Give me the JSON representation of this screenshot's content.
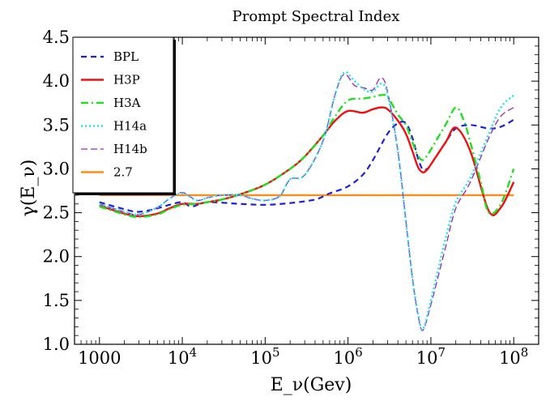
{
  "chart_data": {
    "type": "line",
    "title": "Prompt Spectral Index",
    "xlabel": "E_ν(Gev)",
    "ylabel": "γ(E_ν)",
    "x_scale": "log",
    "xlim": [
      500,
      200000000
    ],
    "ylim": [
      1.0,
      4.5
    ],
    "x_ticks": [
      {
        "value": 1000,
        "base": "1000",
        "exp": ""
      },
      {
        "value": 10000,
        "base": "10",
        "exp": "4"
      },
      {
        "value": 100000,
        "base": "10",
        "exp": "5"
      },
      {
        "value": 1000000,
        "base": "10",
        "exp": "6"
      },
      {
        "value": 10000000,
        "base": "10",
        "exp": "7"
      },
      {
        "value": 100000000,
        "base": "10",
        "exp": "8"
      }
    ],
    "y_ticks": [
      {
        "value": 1.0,
        "label": "1.0"
      },
      {
        "value": 1.5,
        "label": "1.5"
      },
      {
        "value": 2.0,
        "label": "2.0"
      },
      {
        "value": 2.5,
        "label": "2.5"
      },
      {
        "value": 3.0,
        "label": "3.0"
      },
      {
        "value": 3.5,
        "label": "3.5"
      },
      {
        "value": 4.0,
        "label": "4.0"
      },
      {
        "value": 4.5,
        "label": "4.5"
      }
    ],
    "grid": false,
    "legend_position": "top-left",
    "series": [
      {
        "name": "BPL",
        "color": "#1f1fd6",
        "dash": "7,5",
        "width": 2.2,
        "x": [
          1000,
          2000,
          3000,
          5000,
          7000,
          10000,
          13000,
          20000,
          50000,
          100000,
          200000,
          400000,
          600000,
          1000000,
          1500000,
          2000000,
          3000000,
          4000000,
          5000000,
          6000000,
          7000000,
          8000000,
          9000000,
          10000000,
          15000000,
          20000000,
          30000000,
          50000000,
          70000000,
          100000000
        ],
        "y": [
          2.62,
          2.54,
          2.51,
          2.55,
          2.59,
          2.62,
          2.57,
          2.62,
          2.6,
          2.59,
          2.61,
          2.65,
          2.72,
          2.8,
          2.93,
          3.1,
          3.4,
          3.52,
          3.52,
          3.35,
          3.12,
          2.99,
          3.0,
          3.05,
          3.3,
          3.46,
          3.5,
          3.46,
          3.48,
          3.56
        ]
      },
      {
        "name": "H3P",
        "color": "#ee1111",
        "dash": "",
        "width": 2.4,
        "x": [
          1000,
          2000,
          3000,
          5000,
          7000,
          10000,
          15000,
          20000,
          30000,
          50000,
          100000,
          200000,
          300000,
          500000,
          700000,
          1000000,
          1500000,
          2000000,
          2500000,
          3000000,
          4000000,
          5000000,
          6000000,
          7000000,
          8000000,
          9000000,
          10000000,
          15000000,
          20000000,
          30000000,
          50000000,
          70000000,
          100000000
        ],
        "y": [
          2.58,
          2.49,
          2.46,
          2.49,
          2.55,
          2.6,
          2.6,
          2.62,
          2.65,
          2.71,
          2.82,
          3.0,
          3.14,
          3.38,
          3.55,
          3.66,
          3.64,
          3.68,
          3.7,
          3.68,
          3.55,
          3.4,
          3.2,
          3.02,
          2.96,
          2.99,
          3.05,
          3.3,
          3.47,
          3.2,
          2.52,
          2.56,
          2.85
        ]
      },
      {
        "name": "H3A",
        "color": "#22dd22",
        "dash": "9,4,2,4",
        "width": 2.4,
        "x": [
          1000,
          2000,
          3000,
          5000,
          7000,
          10000,
          15000,
          20000,
          30000,
          50000,
          100000,
          200000,
          300000,
          500000,
          700000,
          1000000,
          1500000,
          2000000,
          2500000,
          3000000,
          4000000,
          5000000,
          6000000,
          7000000,
          8000000,
          9000000,
          10000000,
          15000000,
          20000000,
          25000000,
          30000000,
          40000000,
          50000000,
          70000000,
          100000000
        ],
        "y": [
          2.57,
          2.48,
          2.45,
          2.48,
          2.54,
          2.59,
          2.6,
          2.62,
          2.65,
          2.71,
          2.82,
          3.0,
          3.14,
          3.38,
          3.6,
          3.78,
          3.8,
          3.82,
          3.84,
          3.82,
          3.62,
          3.5,
          3.3,
          3.15,
          3.1,
          3.15,
          3.22,
          3.5,
          3.7,
          3.55,
          3.3,
          2.85,
          2.5,
          2.6,
          3.0
        ]
      },
      {
        "name": "H14a",
        "color": "#22e5ee",
        "dash": "2,3",
        "width": 2.6,
        "x": [
          1000,
          2000,
          3000,
          5000,
          7000,
          10000,
          15000,
          20000,
          30000,
          50000,
          70000,
          100000,
          150000,
          200000,
          300000,
          500000,
          700000,
          900000,
          1200000,
          1600000,
          2000000,
          2500000,
          3000000,
          4000000,
          5000000,
          6000000,
          7000000,
          8000000,
          10000000,
          15000000,
          20000000,
          30000000,
          50000000,
          70000000,
          100000000
        ],
        "y": [
          2.6,
          2.51,
          2.48,
          2.56,
          2.66,
          2.72,
          2.64,
          2.67,
          2.7,
          2.7,
          2.66,
          2.64,
          2.69,
          2.88,
          2.93,
          3.32,
          3.85,
          4.1,
          4.0,
          3.9,
          3.88,
          3.97,
          3.85,
          3.2,
          2.4,
          1.75,
          1.35,
          1.17,
          1.5,
          2.2,
          2.62,
          2.9,
          3.4,
          3.7,
          3.84
        ]
      },
      {
        "name": "H14b",
        "color": "#9922cc",
        "dash": "8,4",
        "width": 1.3,
        "x": [
          1000,
          2000,
          3000,
          5000,
          7000,
          10000,
          15000,
          20000,
          30000,
          50000,
          70000,
          100000,
          150000,
          200000,
          300000,
          500000,
          700000,
          900000,
          1200000,
          1600000,
          2000000,
          2500000,
          3000000,
          4000000,
          5000000,
          6000000,
          7000000,
          8000000,
          10000000,
          15000000,
          20000000,
          30000000,
          50000000,
          70000000,
          100000000
        ],
        "y": [
          2.6,
          2.51,
          2.48,
          2.56,
          2.66,
          2.73,
          2.64,
          2.67,
          2.7,
          2.7,
          2.66,
          2.64,
          2.69,
          2.88,
          2.93,
          3.32,
          3.85,
          4.08,
          3.95,
          3.92,
          3.9,
          4.04,
          3.88,
          3.2,
          2.4,
          1.75,
          1.33,
          1.16,
          1.45,
          2.1,
          2.55,
          2.85,
          3.35,
          3.6,
          3.7
        ]
      },
      {
        "name": "2.7",
        "color": "#ff8c1a",
        "dash": "",
        "width": 2.4,
        "x": [
          1000,
          100000000
        ],
        "y": [
          2.7,
          2.7
        ]
      }
    ]
  }
}
